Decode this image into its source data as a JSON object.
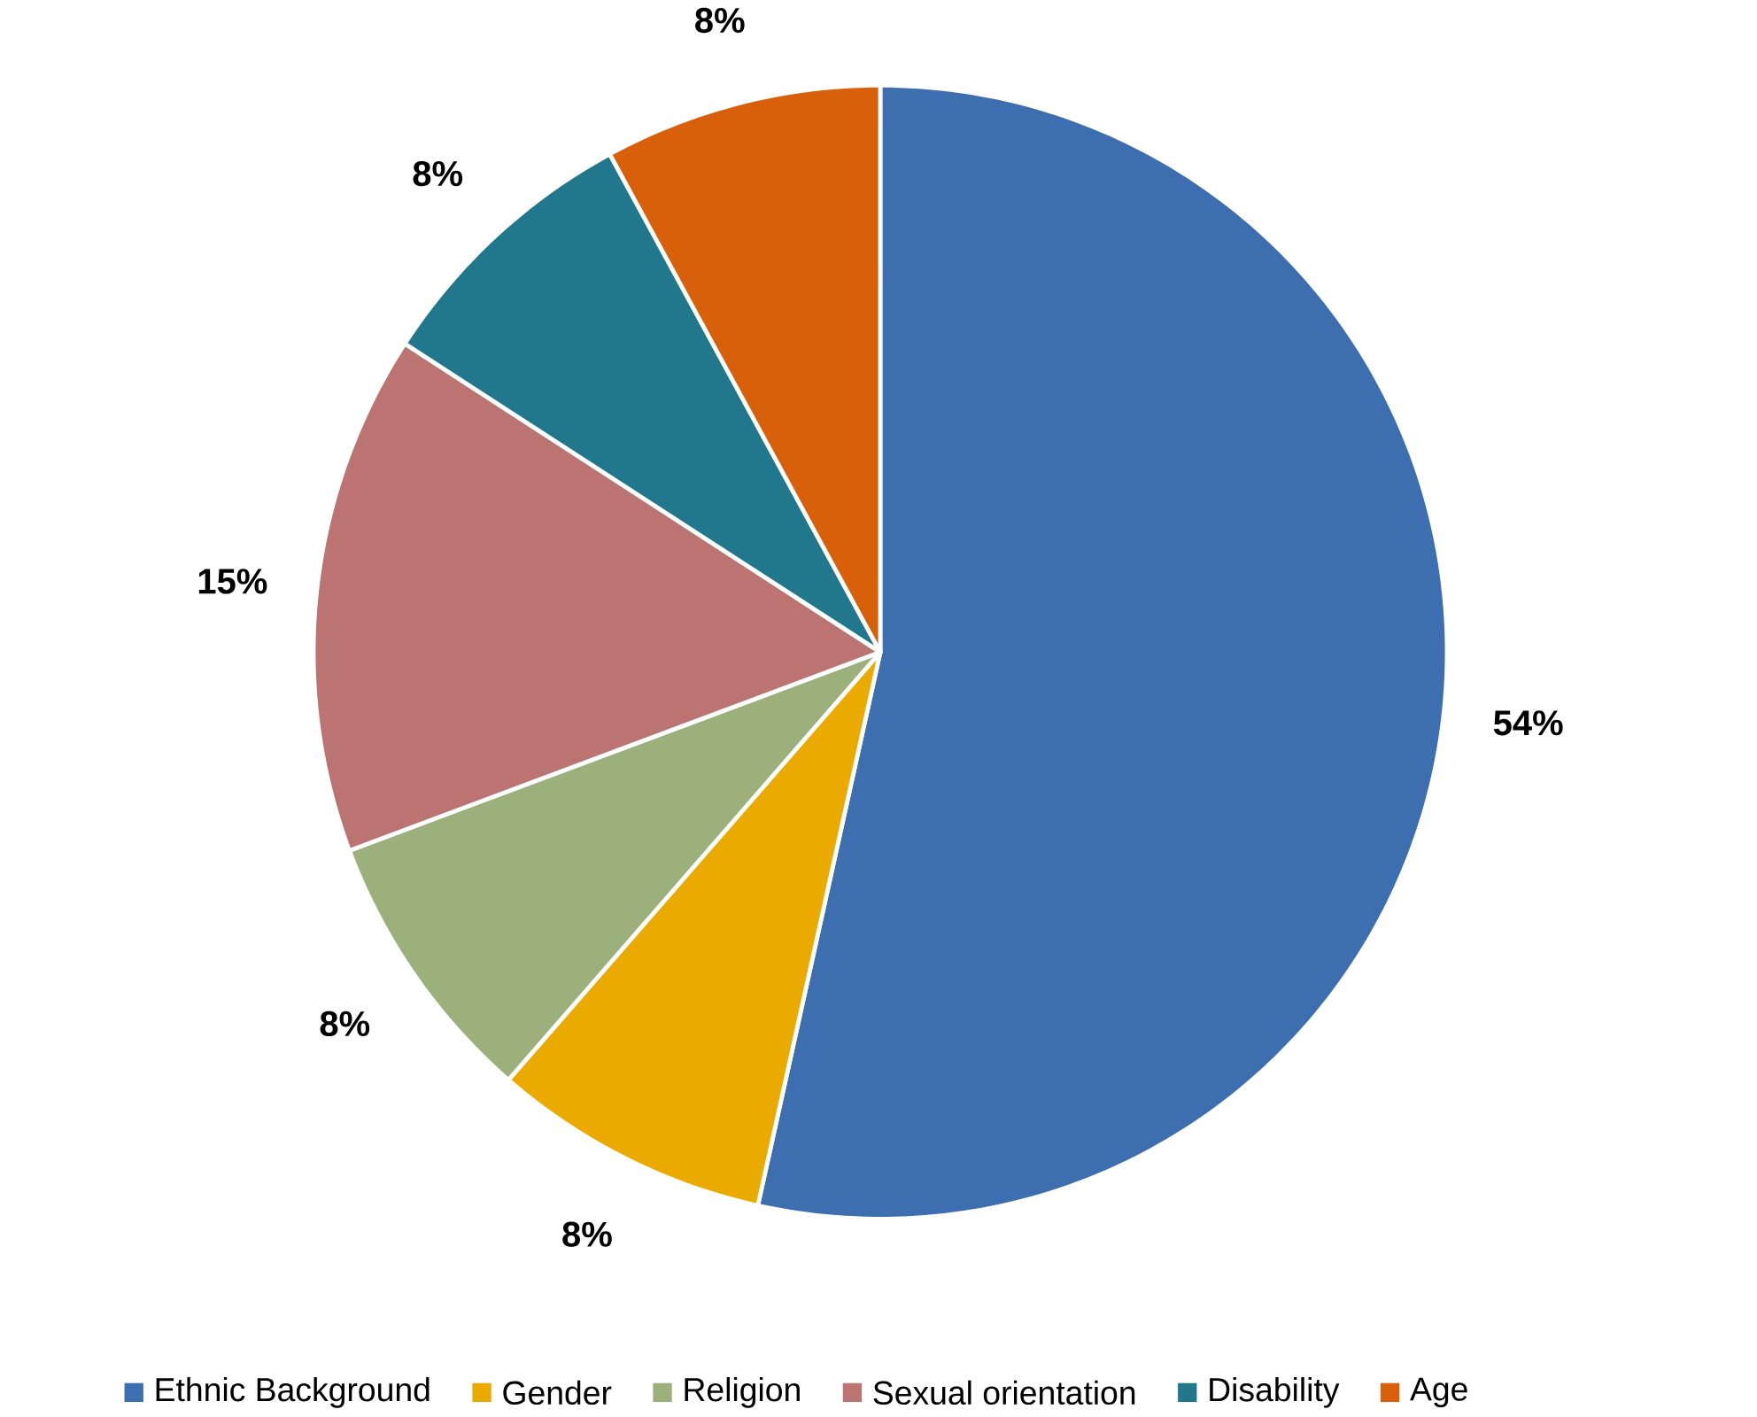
{
  "chart_data": {
    "type": "pie",
    "categories": [
      "Ethnic Background",
      "Gender",
      "Religion",
      "Sexual orientation",
      "Disability",
      "Age"
    ],
    "values": [
      54,
      8,
      8,
      15,
      8,
      8
    ],
    "value_labels": [
      "54%",
      "8%",
      "8%",
      "15%",
      "8%",
      "8%"
    ],
    "colors": [
      "#3d6fb0",
      "#eaaa00",
      "#9bb07a",
      "#bc7472",
      "#21778b",
      "#d8600b"
    ],
    "legend": "bottom"
  }
}
